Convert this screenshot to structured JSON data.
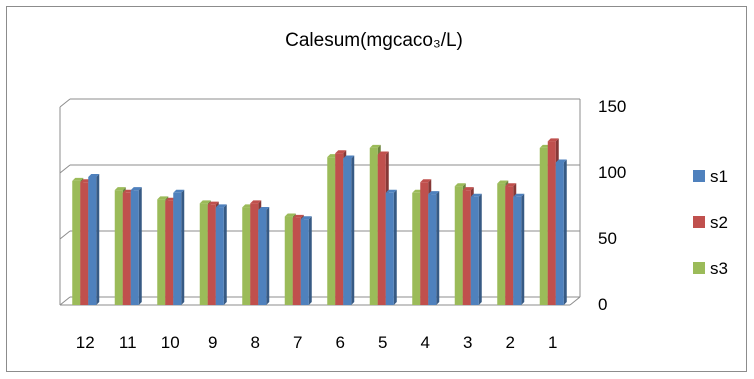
{
  "chart_data": {
    "type": "bar",
    "title": "Calesum(mgcaco₃/L)",
    "categories": [
      "12",
      "11",
      "10",
      "9",
      "8",
      "7",
      "6",
      "5",
      "4",
      "3",
      "2",
      "1"
    ],
    "series": [
      {
        "name": "s3",
        "color": "#9bbb59",
        "values": [
          94,
          87,
          80,
          77,
          74,
          67,
          112,
          119,
          85,
          90,
          92,
          119
        ]
      },
      {
        "name": "s2",
        "color": "#c0504d",
        "values": [
          93,
          85,
          79,
          76,
          77,
          66,
          115,
          114,
          93,
          87,
          90,
          124
        ]
      },
      {
        "name": "s1",
        "color": "#4f81bd",
        "values": [
          97,
          87,
          85,
          74,
          72,
          65,
          111,
          85,
          84,
          82,
          82,
          108
        ]
      }
    ],
    "yticks": [
      0,
      50,
      100,
      150
    ],
    "ylim": [
      0,
      150
    ],
    "ylabel": "",
    "xlabel": "",
    "y_axis_side": "right",
    "legend": {
      "position": "right",
      "order": [
        "s1",
        "s2",
        "s3"
      ]
    },
    "grid": true
  }
}
